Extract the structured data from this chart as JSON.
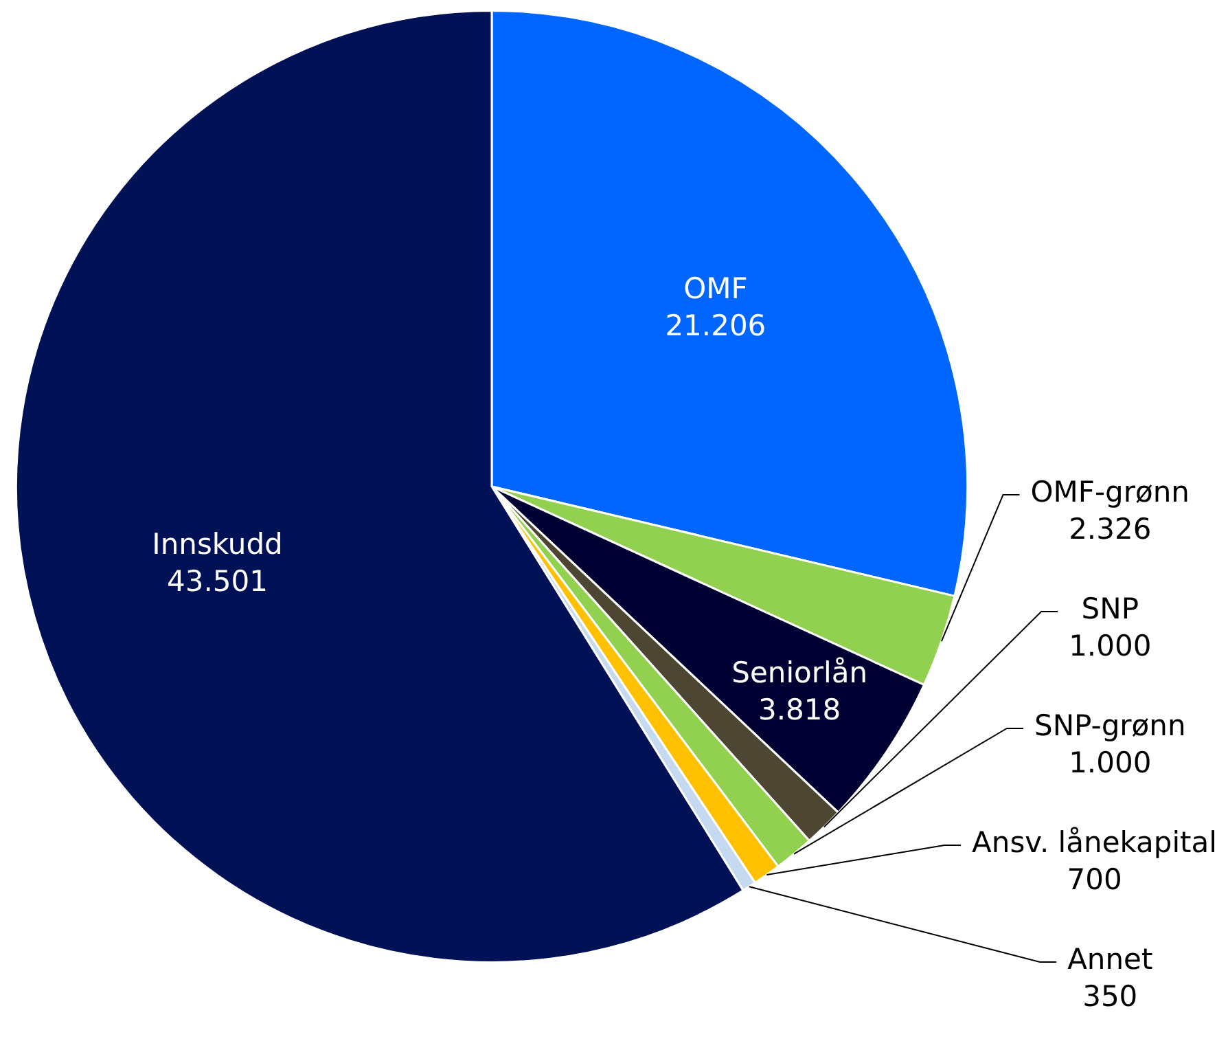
{
  "chart_data": {
    "type": "pie",
    "categories": [
      "OMF",
      "OMF-grønn",
      "Seniorlån",
      "SNP",
      "SNP-grønn",
      "Ansv. lånekapital",
      "Annet",
      "Innskudd"
    ],
    "values": [
      21206,
      2326,
      3818,
      1000,
      1000,
      700,
      350,
      43501
    ],
    "value_labels": [
      "21.206",
      "2.326",
      "3.818",
      "1.000",
      "1.000",
      "700",
      "350",
      "43.501"
    ],
    "colors": [
      "#0066ff",
      "#92d050",
      "#000033",
      "#4d4633",
      "#92d050",
      "#ffc000",
      "#c5d9f1",
      "#001155"
    ],
    "legend": false
  }
}
